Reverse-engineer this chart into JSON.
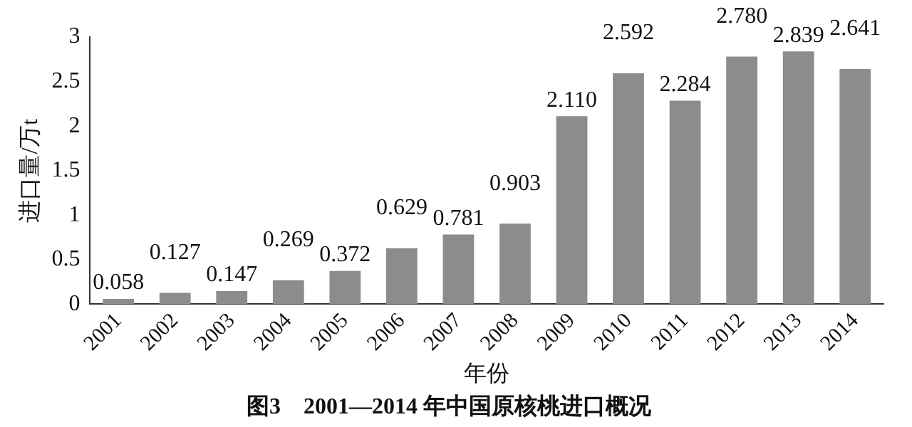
{
  "chart_data": {
    "type": "bar",
    "title": "图3　2001—2014 年中国原核桃进口概况",
    "xlabel": "年份",
    "ylabel": "进口量/万t",
    "categories": [
      "2001",
      "2002",
      "2003",
      "2004",
      "2005",
      "2006",
      "2007",
      "2008",
      "2009",
      "2010",
      "2011",
      "2012",
      "2013",
      "2014"
    ],
    "values": [
      0.058,
      0.127,
      0.147,
      0.269,
      0.372,
      0.629,
      0.781,
      0.903,
      2.11,
      2.592,
      2.284,
      2.78,
      2.839,
      2.641
    ],
    "value_labels": [
      "0.058",
      "0.127",
      "0.147",
      "0.269",
      "0.372",
      "0.629",
      "0.781",
      "0.903",
      "2.110",
      "2.592",
      "2.284",
      "2.780",
      "2.839",
      "2.641"
    ],
    "color": "#8c8c8c",
    "ylim": [
      0,
      3
    ],
    "yticks": [
      0,
      0.5,
      1,
      1.5,
      2,
      2.5,
      3
    ],
    "grid": false,
    "legend": false
  }
}
